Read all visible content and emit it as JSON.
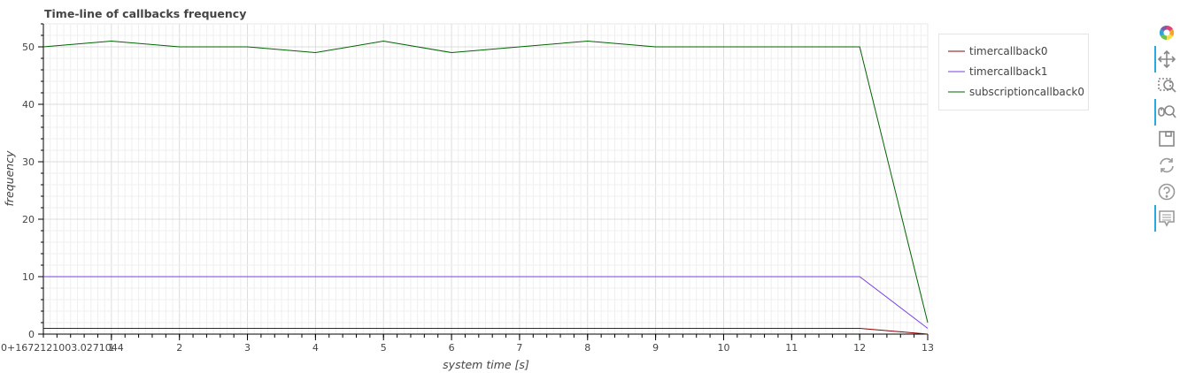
{
  "chart_data": {
    "type": "line",
    "title": "Time-line of callbacks frequency",
    "xlabel": "system time [s]",
    "ylabel": "frequency",
    "x_offset_label": "0+1672121003.0271044",
    "xlim": [
      0,
      13
    ],
    "ylim": [
      0,
      54
    ],
    "x_ticks": [
      1,
      2,
      3,
      4,
      5,
      6,
      7,
      8,
      9,
      10,
      11,
      12,
      13
    ],
    "y_ticks": [
      0,
      10,
      20,
      30,
      40,
      50
    ],
    "grid": true,
    "legend_position": "top-right",
    "x": [
      0,
      1,
      2,
      3,
      4,
      5,
      6,
      7,
      8,
      9,
      10,
      11,
      12,
      13
    ],
    "series": [
      {
        "name": "timercallback0",
        "color": "#8b0000",
        "values": [
          1,
          1,
          1,
          1,
          1,
          1,
          1,
          1,
          1,
          1,
          1,
          1,
          1,
          0
        ]
      },
      {
        "name": "timercallback1",
        "color": "#7b3fe4",
        "values": [
          10,
          10,
          10,
          10,
          10,
          10,
          10,
          10,
          10,
          10,
          10,
          10,
          10,
          1
        ]
      },
      {
        "name": "subscriptioncallback0",
        "color": "#006400",
        "values": [
          50,
          51,
          50,
          50,
          49,
          51,
          49,
          50,
          51,
          50,
          50,
          50,
          50,
          2
        ]
      }
    ]
  },
  "toolbar": {
    "tools": [
      {
        "name": "bokeh-logo-icon",
        "active": false
      },
      {
        "name": "pan-icon",
        "active": true
      },
      {
        "name": "box-zoom-icon",
        "active": false
      },
      {
        "name": "wheel-zoom-icon",
        "active": true
      },
      {
        "name": "save-icon",
        "active": false
      },
      {
        "name": "reset-icon",
        "active": false
      },
      {
        "name": "help-icon",
        "active": false
      },
      {
        "name": "hover-icon",
        "active": true
      }
    ]
  }
}
